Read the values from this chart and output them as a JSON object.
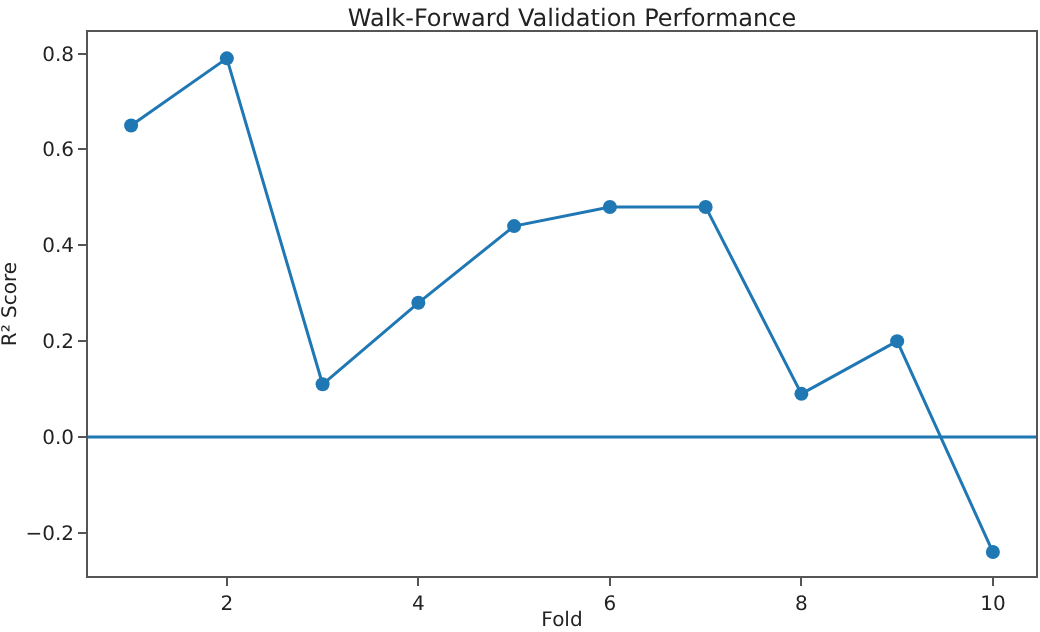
{
  "chart_data": {
    "type": "line",
    "title": "Walk-Forward Validation Performance",
    "xlabel": "Fold",
    "ylabel": "R² Score",
    "x": [
      1,
      2,
      3,
      4,
      5,
      6,
      7,
      8,
      9,
      10
    ],
    "series": [
      {
        "color": "#1f77b4",
        "values": [
          0.65,
          0.79,
          0.11,
          0.28,
          0.44,
          0.48,
          0.48,
          0.09,
          0.2,
          -0.24
        ]
      }
    ],
    "xlim": [
      0.55,
      10.45
    ],
    "xticks": [
      2,
      4,
      6,
      8,
      10
    ],
    "ylim": [
      -0.29,
      0.845
    ],
    "yticks": [
      -0.2,
      {
        "value": 0,
        "label": "0.0"
      },
      0.2,
      0.4,
      0.6,
      0.8
    ],
    "ref_lines": [
      {
        "axis": "y",
        "value": 0,
        "color": "#1f77b4"
      }
    ],
    "marker": "circle",
    "line_style": "solid"
  }
}
